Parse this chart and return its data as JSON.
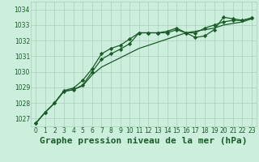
{
  "bg_color": "#cceedd",
  "grid_color": "#aaccbb",
  "line_color": "#1a5c28",
  "marker_color": "#1a5c28",
  "xlabel": "Graphe pression niveau de la mer (hPa)",
  "xlabel_fontsize": 8,
  "ylim": [
    1026.5,
    1034.5
  ],
  "xlim": [
    -0.5,
    23.5
  ],
  "yticks": [
    1027,
    1028,
    1029,
    1030,
    1031,
    1032,
    1033,
    1034
  ],
  "xticks": [
    0,
    1,
    2,
    3,
    4,
    5,
    6,
    7,
    8,
    9,
    10,
    11,
    12,
    13,
    14,
    15,
    16,
    17,
    18,
    19,
    20,
    21,
    22,
    23
  ],
  "series1": [
    1026.7,
    1027.4,
    1028.0,
    1028.75,
    1028.85,
    1029.1,
    1029.8,
    1030.3,
    1030.6,
    1030.9,
    1031.2,
    1031.5,
    1031.7,
    1031.9,
    1032.1,
    1032.3,
    1032.5,
    1032.6,
    1032.7,
    1032.8,
    1033.0,
    1033.1,
    1033.2,
    1033.4
  ],
  "series2": [
    1026.7,
    1027.4,
    1028.0,
    1028.75,
    1028.85,
    1029.15,
    1030.0,
    1030.8,
    1031.15,
    1031.45,
    1031.8,
    1032.5,
    1032.5,
    1032.5,
    1032.5,
    1032.7,
    1032.5,
    1032.5,
    1032.8,
    1033.0,
    1033.2,
    1033.3,
    1033.3,
    1033.45
  ],
  "series3": [
    1026.7,
    1027.4,
    1028.0,
    1028.8,
    1028.95,
    1029.45,
    1030.2,
    1031.15,
    1031.5,
    1031.7,
    1032.1,
    1032.5,
    1032.5,
    1032.5,
    1032.6,
    1032.8,
    1032.5,
    1032.2,
    1032.3,
    1032.7,
    1033.5,
    1033.4,
    1033.3,
    1033.45
  ]
}
